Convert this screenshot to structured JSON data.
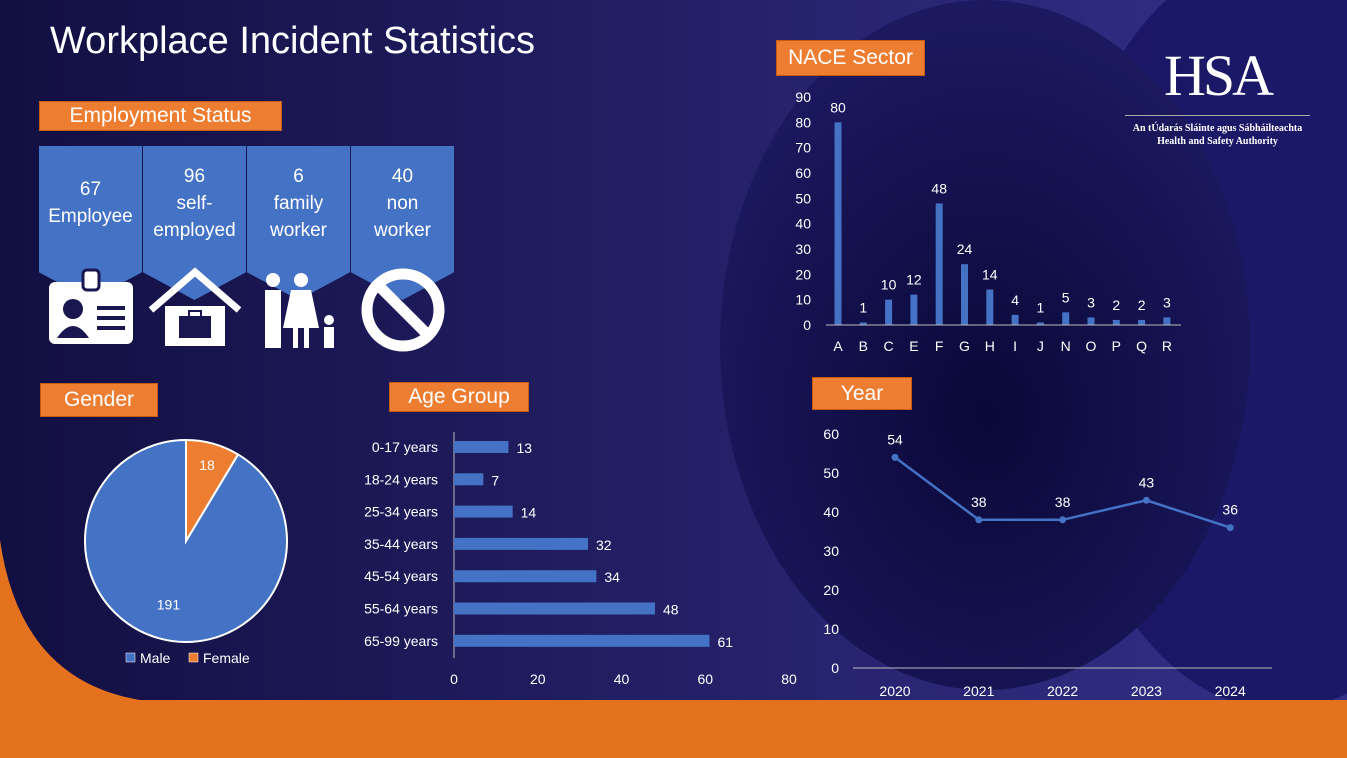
{
  "title": "Workplace Incident Statistics",
  "logo": {
    "text": "HSA",
    "line1": "An tÚdarás Sláinte agus Sábháilteachta",
    "line2": "Health and Safety Authority"
  },
  "colors": {
    "accent": "#ed7d31",
    "bar": "#4472c4",
    "background": "#1a1650"
  },
  "employment": {
    "label": "Employment Status",
    "items": [
      {
        "value": "67",
        "text": "Employee",
        "icon": "id-badge-icon"
      },
      {
        "value": "96",
        "text": "self-employed",
        "icon": "home-work-icon"
      },
      {
        "value": "6",
        "text": "family worker",
        "icon": "family-icon"
      },
      {
        "value": "40",
        "text": "non worker",
        "icon": "prohibited-icon"
      }
    ]
  },
  "chart_data": [
    {
      "type": "pie",
      "title": "Gender",
      "categories": [
        "Male",
        "Female"
      ],
      "values": [
        191,
        18
      ],
      "colors": [
        "#4472c4",
        "#ed7d31"
      ],
      "legend": "bottom"
    },
    {
      "type": "bar",
      "orientation": "horizontal",
      "title": "Age Group",
      "categories": [
        "0-17 years",
        "18-24 years",
        "25-34 years",
        "35-44 years",
        "45-54 years",
        "55-64 years",
        "65-99 years"
      ],
      "values": [
        13,
        7,
        14,
        32,
        34,
        48,
        61
      ],
      "xlim": [
        0,
        80
      ],
      "xticks": [
        "0",
        "20",
        "40",
        "60",
        "80"
      ]
    },
    {
      "type": "bar",
      "title": "NACE Sector",
      "categories": [
        "A",
        "B",
        "C",
        "E",
        "F",
        "G",
        "H",
        "I",
        "J",
        "N",
        "O",
        "P",
        "Q",
        "R"
      ],
      "values": [
        80,
        1,
        10,
        12,
        48,
        24,
        14,
        4,
        1,
        5,
        3,
        2,
        2,
        3
      ],
      "ylim": [
        0,
        90
      ],
      "yticks": [
        "0",
        "10",
        "20",
        "30",
        "40",
        "50",
        "60",
        "70",
        "80",
        "90"
      ]
    },
    {
      "type": "line",
      "title": "Year",
      "categories": [
        "2020",
        "2021",
        "2022",
        "2023",
        "2024"
      ],
      "values": [
        54,
        38,
        38,
        43,
        36
      ],
      "ylim": [
        0,
        60
      ],
      "yticks": [
        "0",
        "10",
        "20",
        "30",
        "40",
        "50",
        "60"
      ]
    }
  ]
}
